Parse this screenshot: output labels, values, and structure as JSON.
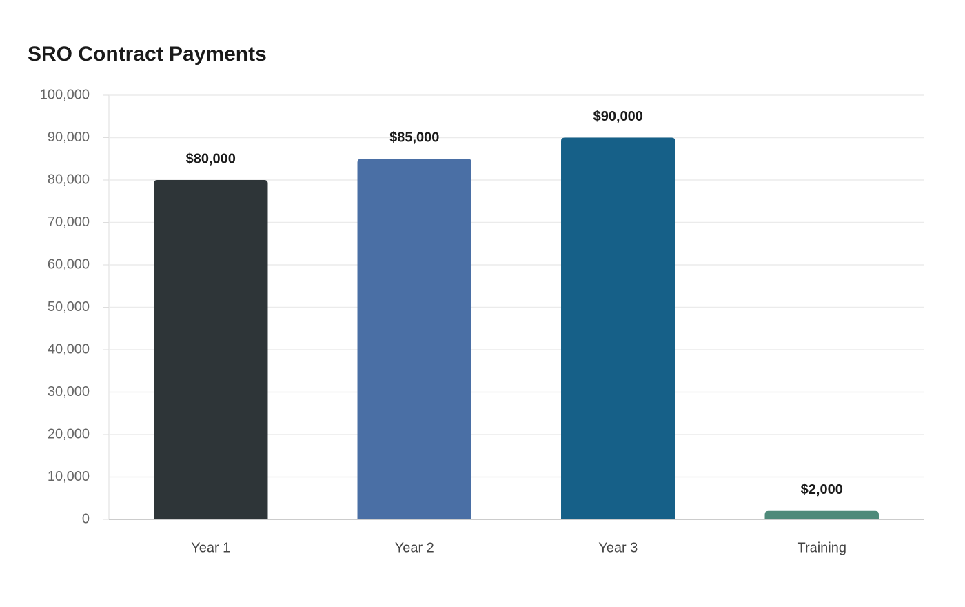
{
  "chart_data": {
    "type": "bar",
    "title": "SRO Contract Payments",
    "categories": [
      "Year 1",
      "Year 2",
      "Year 3",
      "Training"
    ],
    "values": [
      80000,
      85000,
      90000,
      2000
    ],
    "value_labels": [
      "$80,000",
      "$85,000",
      "$90,000",
      "$2,000"
    ],
    "colors": [
      "#2e3538",
      "#4a6fa5",
      "#166088",
      "#4f8a7a"
    ],
    "ylim": [
      0,
      100000
    ],
    "yticks": [
      0,
      {
        "value": 10000,
        "label": "10,000"
      },
      {
        "value": 20000,
        "label": "20,000"
      },
      {
        "value": 30000,
        "label": "30,000"
      },
      {
        "value": 40000,
        "label": "40,000"
      },
      {
        "value": 50000,
        "label": "50,000"
      },
      {
        "value": 60000,
        "label": "60,000"
      },
      {
        "value": 70000,
        "label": "70,000"
      },
      {
        "value": 80000,
        "label": "80,000"
      },
      {
        "value": 90000,
        "label": "90,000"
      },
      {
        "value": 100000,
        "label": "100,000"
      }
    ],
    "grid": true
  }
}
